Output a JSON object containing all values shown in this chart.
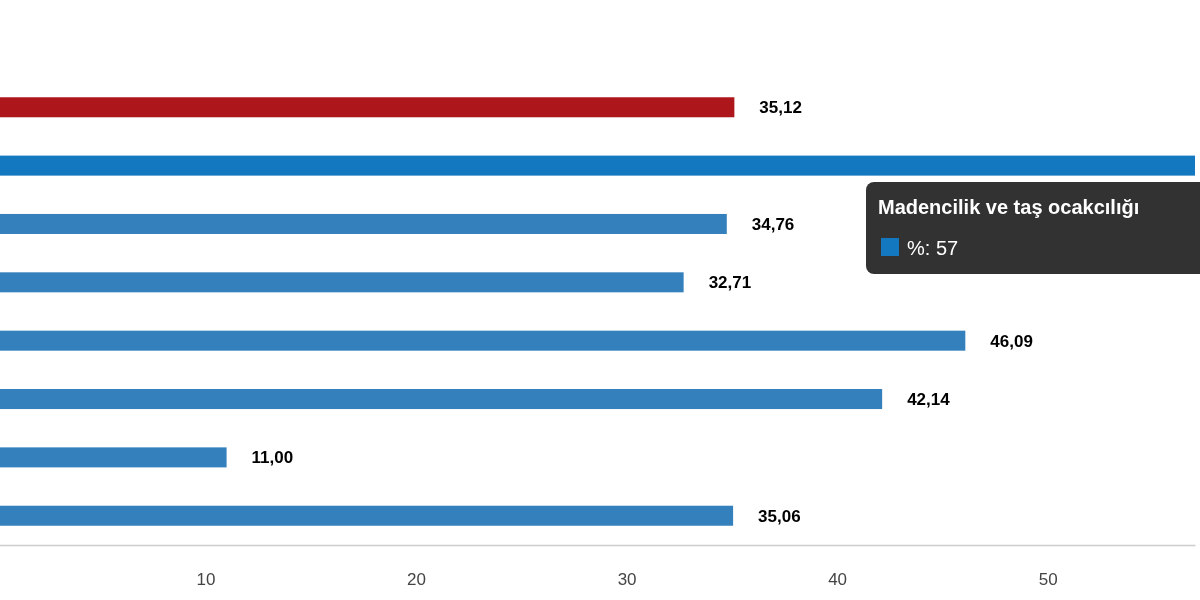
{
  "chart_data": {
    "type": "bar",
    "orientation": "horizontal",
    "categories": [
      null,
      null,
      null,
      null,
      null,
      null,
      null,
      null
    ],
    "values": [
      35.12,
      57,
      34.76,
      32.71,
      46.09,
      42.14,
      11.0,
      35.06
    ],
    "colors": [
      "#ad171c",
      "#1478c0",
      "#3380bd",
      "#3380bd",
      "#3380bd",
      "#3380bd",
      "#3380bd",
      "#3380bd"
    ],
    "value_labels": [
      "35,12",
      null,
      "34,76",
      "32,71",
      "46,09",
      "42,14",
      "11,00",
      "35,06"
    ],
    "xlim": [
      0,
      57
    ],
    "xticks": [
      10,
      20,
      30,
      40,
      50
    ],
    "annotations": [
      "Madencilik ve taş ocakcılığı",
      "%: 57"
    ]
  }
}
